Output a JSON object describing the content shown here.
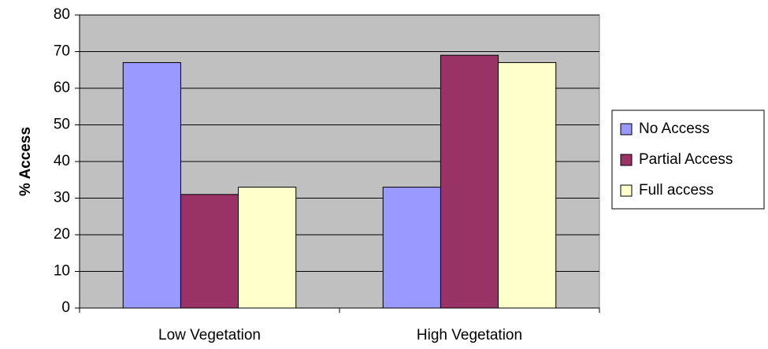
{
  "chart_data": {
    "type": "bar",
    "title": "",
    "xlabel": "",
    "ylabel": "% Access",
    "ylim": [
      0,
      80
    ],
    "yticks": [
      0,
      10,
      20,
      30,
      40,
      50,
      60,
      70,
      80
    ],
    "grid": true,
    "legend_position": "right",
    "plot_background": "#c0c0c0",
    "categories": [
      "Low Vegetation",
      "High Vegetation"
    ],
    "series": [
      {
        "name": "No Access",
        "color": "#9999ff",
        "values": [
          67,
          33
        ]
      },
      {
        "name": "Partial Access",
        "color": "#993366",
        "values": [
          31,
          69
        ]
      },
      {
        "name": "Full access",
        "color": "#ffffcc",
        "values": [
          33,
          67
        ]
      }
    ]
  }
}
